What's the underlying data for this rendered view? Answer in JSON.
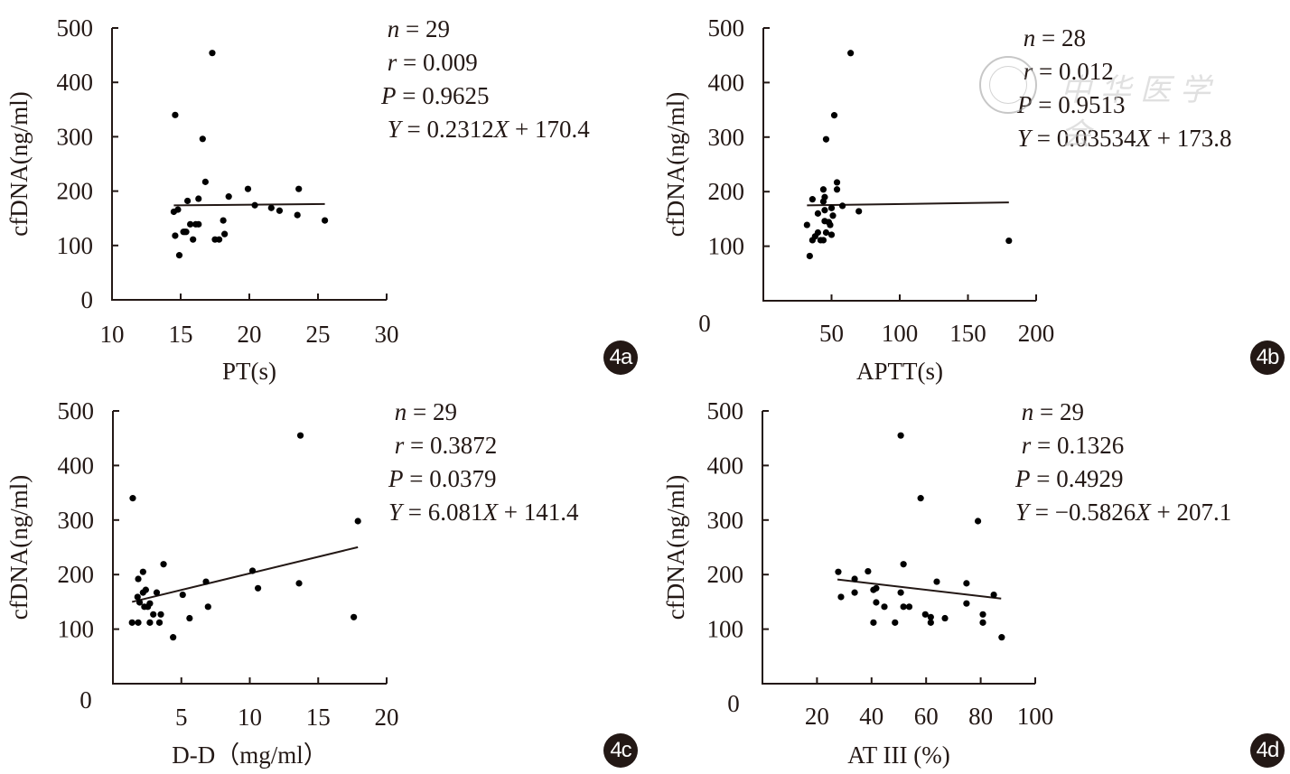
{
  "figure": {
    "y_axis_title": "cfDNA(ng/ml)",
    "watermark_text": "中华医学会"
  },
  "chart_data": [
    {
      "id": "4a",
      "type": "scatter",
      "panel_label": "4a",
      "xlabel": "PT(s)",
      "ylabel": "cfDNA(ng/ml)",
      "xlim": [
        10,
        30
      ],
      "ylim": [
        0,
        500
      ],
      "xticks": [
        10,
        15,
        20,
        25,
        30
      ],
      "yticks": [
        0,
        100,
        200,
        300,
        400,
        500
      ],
      "grid": false,
      "stats": {
        "n": "29",
        "r": "0.009",
        "P": "0.9625",
        "slope": "0.2312",
        "intercept": "170.4",
        "equation_rhs": "0.2312X + 170.4"
      },
      "regression": {
        "slope": 0.2312,
        "intercept": 170.4,
        "x_range": [
          14.5,
          25.5
        ]
      },
      "points": [
        [
          14.5,
          162
        ],
        [
          14.8,
          166
        ],
        [
          14.6,
          340
        ],
        [
          14.6,
          118
        ],
        [
          14.9,
          82
        ],
        [
          15.2,
          125
        ],
        [
          15.4,
          125
        ],
        [
          15.5,
          182
        ],
        [
          15.7,
          139
        ],
        [
          15.9,
          111
        ],
        [
          16.1,
          139
        ],
        [
          16.3,
          139
        ],
        [
          16.3,
          186
        ],
        [
          16.6,
          296
        ],
        [
          16.8,
          217
        ],
        [
          17.3,
          454
        ],
        [
          17.5,
          111
        ],
        [
          17.8,
          111
        ],
        [
          18.1,
          146
        ],
        [
          18.2,
          121
        ],
        [
          18.5,
          190
        ],
        [
          19.9,
          204
        ],
        [
          20.4,
          174
        ],
        [
          21.6,
          169
        ],
        [
          22.2,
          164
        ],
        [
          23.5,
          156
        ],
        [
          23.6,
          204
        ],
        [
          25.5,
          146
        ],
        [
          15.3,
          125
        ]
      ]
    },
    {
      "id": "4b",
      "type": "scatter",
      "panel_label": "4b",
      "xlabel": "APTT(s)",
      "ylabel": "cfDNA(ng/ml)",
      "xlim": [
        0,
        200
      ],
      "ylim": [
        0,
        500
      ],
      "xticks": [
        50,
        100,
        150,
        200
      ],
      "yticks": [
        100,
        200,
        300,
        400,
        500
      ],
      "origin_label": "0",
      "grid": false,
      "stats": {
        "n": "28",
        "r": "0.012",
        "P": "0.9513",
        "slope": "0.03534",
        "intercept": "173.8",
        "equation_rhs": "0.03534X + 173.8"
      },
      "regression": {
        "slope": 0.03534,
        "intercept": 173.8,
        "x_range": [
          32,
          180
        ]
      },
      "points": [
        [
          64,
          454
        ],
        [
          52,
          340
        ],
        [
          46,
          296
        ],
        [
          54,
          217
        ],
        [
          54,
          204
        ],
        [
          44,
          204
        ],
        [
          36,
          186
        ],
        [
          45,
          190
        ],
        [
          44,
          182
        ],
        [
          58,
          174
        ],
        [
          50,
          170
        ],
        [
          45,
          166
        ],
        [
          70,
          164
        ],
        [
          40,
          160
        ],
        [
          51,
          156
        ],
        [
          45,
          146
        ],
        [
          48,
          144
        ],
        [
          32,
          139
        ],
        [
          49,
          139
        ],
        [
          40,
          125
        ],
        [
          46,
          125
        ],
        [
          50,
          121
        ],
        [
          38,
          118
        ],
        [
          36,
          111
        ],
        [
          42,
          111
        ],
        [
          44,
          111
        ],
        [
          34,
          82
        ],
        [
          180,
          110
        ]
      ]
    },
    {
      "id": "4c",
      "type": "scatter",
      "panel_label": "4c",
      "xlabel": "D-D（mg/ml）",
      "ylabel": "cfDNA(ng/ml)",
      "xlim": [
        0,
        20
      ],
      "ylim": [
        0,
        500
      ],
      "xticks": [
        5,
        10,
        15,
        20
      ],
      "yticks": [
        100,
        200,
        300,
        400,
        500
      ],
      "origin_label": "0",
      "grid": false,
      "stats": {
        "n": "29",
        "r": "0.3872",
        "P": "0.0379",
        "slope": "6.081",
        "intercept": "141.4",
        "equation_rhs": "6.081X + 141.4"
      },
      "regression": {
        "slope": 6.081,
        "intercept": 141.4,
        "x_range": [
          1.4,
          17.9
        ]
      },
      "points": [
        [
          1.45,
          340
        ],
        [
          13.7,
          455
        ],
        [
          17.9,
          298
        ],
        [
          3.7,
          219
        ],
        [
          2.2,
          205
        ],
        [
          1.85,
          192
        ],
        [
          10.2,
          207
        ],
        [
          6.8,
          187
        ],
        [
          13.6,
          184
        ],
        [
          10.6,
          175
        ],
        [
          2.4,
          172
        ],
        [
          2.2,
          167
        ],
        [
          3.2,
          167
        ],
        [
          5.1,
          163
        ],
        [
          1.8,
          159
        ],
        [
          1.95,
          149
        ],
        [
          2.7,
          147
        ],
        [
          2.3,
          141
        ],
        [
          2.55,
          141
        ],
        [
          6.95,
          141
        ],
        [
          2.95,
          127
        ],
        [
          3.5,
          127
        ],
        [
          5.6,
          120
        ],
        [
          17.6,
          122
        ],
        [
          1.4,
          112
        ],
        [
          1.85,
          112
        ],
        [
          2.7,
          112
        ],
        [
          3.4,
          112
        ],
        [
          4.4,
          85
        ]
      ]
    },
    {
      "id": "4d",
      "type": "scatter",
      "panel_label": "4d",
      "xlabel": "AT III (%)",
      "ylabel": "cfDNA(ng/ml)",
      "xlim": [
        0,
        100
      ],
      "ylim": [
        0,
        500
      ],
      "xticks": [
        20,
        40,
        60,
        80,
        100
      ],
      "yticks": [
        100,
        200,
        300,
        400,
        500
      ],
      "origin_label": "0",
      "grid": false,
      "stats": {
        "n": "29",
        "r": "0.1326",
        "P": "0.4929",
        "slope": "−0.5826",
        "intercept": "207.1",
        "equation_rhs": "−0.5826X + 207.1"
      },
      "regression": {
        "slope": -0.5826,
        "intercept": 207.1,
        "x_range": [
          27.5,
          87.5
        ]
      },
      "points": [
        [
          50.7,
          455
        ],
        [
          58,
          340
        ],
        [
          79,
          298
        ],
        [
          51.7,
          219
        ],
        [
          27.8,
          205
        ],
        [
          38.7,
          206
        ],
        [
          33.8,
          192
        ],
        [
          63.9,
          187
        ],
        [
          74.8,
          184
        ],
        [
          41.7,
          175
        ],
        [
          40.7,
          172
        ],
        [
          50.7,
          167
        ],
        [
          33.8,
          167
        ],
        [
          84.8,
          163
        ],
        [
          28.8,
          159
        ],
        [
          41.7,
          149
        ],
        [
          74.8,
          147
        ],
        [
          44.7,
          141
        ],
        [
          51.7,
          141
        ],
        [
          53.8,
          141
        ],
        [
          59.7,
          127
        ],
        [
          61.7,
          122
        ],
        [
          80.8,
          127
        ],
        [
          66.9,
          120
        ],
        [
          40.7,
          112
        ],
        [
          48.6,
          112
        ],
        [
          61.7,
          112
        ],
        [
          80.8,
          112
        ],
        [
          87.7,
          85
        ]
      ]
    }
  ]
}
